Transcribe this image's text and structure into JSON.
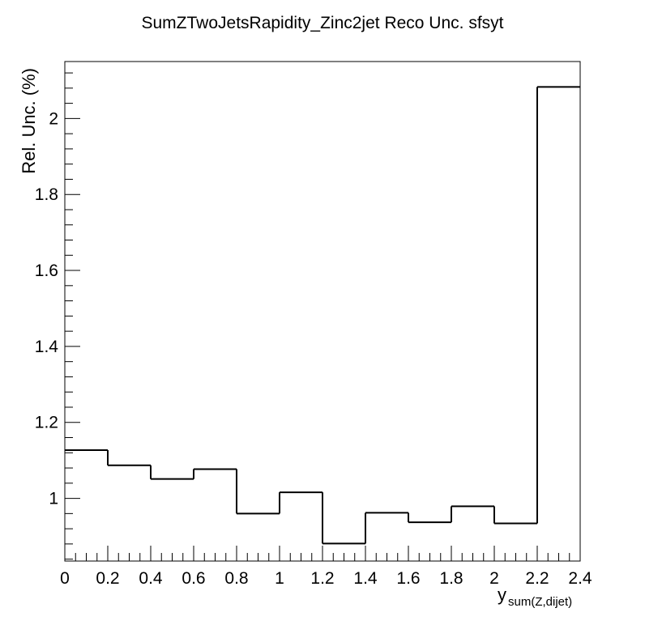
{
  "chart_data": {
    "type": "step",
    "title": "SumZTwoJetsRapidity_Zinc2jet Reco Unc. sfsyt",
    "xlabel": "y",
    "xlabel_subscript": "sum(Z,dijet)",
    "ylabel": "Rel. Unc. (%)",
    "xlim": [
      0,
      2.4
    ],
    "ylim": [
      0.835,
      2.15
    ],
    "x_ticks": [
      0,
      0.2,
      0.4,
      0.6,
      0.8,
      1,
      1.2,
      1.4,
      1.6,
      1.8,
      2,
      2.2,
      2.4
    ],
    "x_tick_labels": [
      "0",
      "0.2",
      "0.4",
      "0.6",
      "0.8",
      "1",
      "1.2",
      "1.4",
      "1.6",
      "1.8",
      "2",
      "2.2",
      "2.4"
    ],
    "y_ticks": [
      1,
      1.2,
      1.4,
      1.6,
      1.8,
      2
    ],
    "y_tick_labels": [
      "1",
      "1.2",
      "1.4",
      "1.6",
      "1.8",
      "2"
    ],
    "bin_edges": [
      0,
      0.2,
      0.4,
      0.6,
      0.8,
      1.0,
      1.2,
      1.4,
      1.6,
      1.8,
      2.0,
      2.2,
      2.4
    ],
    "values": [
      1.127,
      1.087,
      1.051,
      1.077,
      0.96,
      1.016,
      0.881,
      0.962,
      0.937,
      0.979,
      0.934,
      2.083
    ],
    "grid": false,
    "line_color": "#000000"
  }
}
